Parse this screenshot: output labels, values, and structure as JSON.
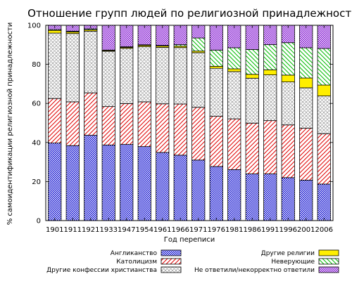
{
  "chart_data": {
    "type": "bar",
    "stacked": true,
    "title": "Отношение групп людей по религиозной принадлежности",
    "xlabel": "Год переписи",
    "ylabel": "% самоидентификации религиозной принадлежности",
    "ylim": [
      0,
      100
    ],
    "yticks": [
      0,
      20,
      40,
      60,
      80,
      100
    ],
    "grid": false,
    "legend_position": "bottom",
    "categories": [
      "1901",
      "1911",
      "1921",
      "1933",
      "1947",
      "1954",
      "1961",
      "1966",
      "1971",
      "1976",
      "1981",
      "1986",
      "1991",
      "1996",
      "2001",
      "2006"
    ],
    "series": [
      {
        "name": "Англиканство",
        "color": "#0000cc",
        "pattern": "checker",
        "values": [
          39.7,
          38.4,
          43.7,
          38.7,
          39.0,
          37.9,
          34.9,
          33.5,
          31.0,
          27.7,
          26.1,
          23.9,
          23.9,
          22.0,
          20.7,
          18.7
        ]
      },
      {
        "name": "Католицизм",
        "color": "#e00000",
        "pattern": "diagonal",
        "values": [
          22.8,
          22.4,
          21.7,
          19.7,
          20.9,
          22.9,
          24.9,
          26.2,
          27.0,
          25.7,
          26.0,
          26.0,
          27.3,
          27.0,
          26.6,
          25.8
        ]
      },
      {
        "name": "Другие конфессии христианства",
        "color": "#999999",
        "pattern": "crosshatch",
        "values": [
          33.5,
          35.0,
          31.6,
          28.3,
          28.3,
          28.3,
          28.9,
          28.9,
          28.0,
          24.6,
          24.2,
          23.0,
          23.4,
          22.0,
          20.7,
          19.3
        ]
      },
      {
        "name": "Другие религии",
        "color": "#ffee00",
        "pattern": "solid",
        "values": [
          1.4,
          0.8,
          0.7,
          0.4,
          0.5,
          0.6,
          0.7,
          0.7,
          0.8,
          1.0,
          1.4,
          2.0,
          2.6,
          3.5,
          5.0,
          5.6
        ]
      },
      {
        "name": "Неверующие",
        "color": "#00bb00",
        "pattern": "diagonal-reverse",
        "values": [
          0.4,
          0.4,
          0.5,
          0.2,
          0.3,
          0.3,
          0.3,
          0.8,
          6.7,
          8.3,
          10.8,
          12.7,
          12.9,
          16.6,
          15.5,
          18.7
        ]
      },
      {
        "name": "Не ответили/некорректно ответили",
        "color": "#7700cc",
        "pattern": "checker",
        "values": [
          2.2,
          3.0,
          1.8,
          12.7,
          11.0,
          10.0,
          10.3,
          9.9,
          6.5,
          12.7,
          11.5,
          12.4,
          9.9,
          8.9,
          11.5,
          11.9
        ]
      }
    ]
  }
}
